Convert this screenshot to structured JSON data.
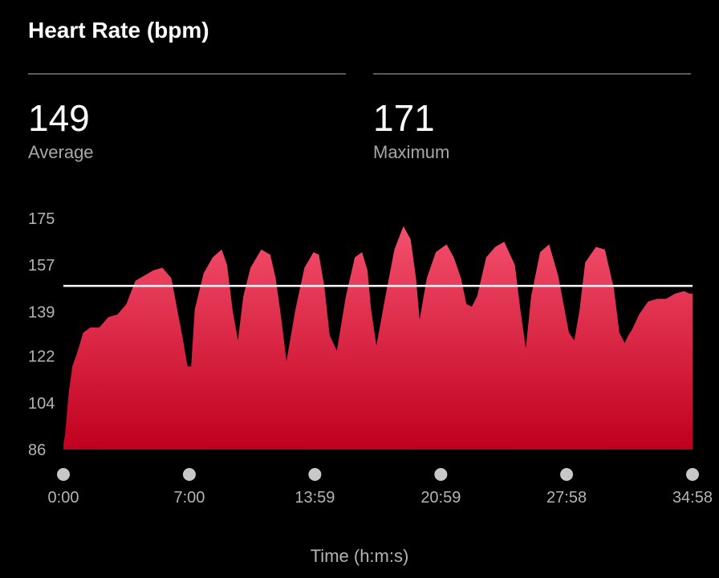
{
  "header": {
    "title": "Heart Rate (bpm)"
  },
  "stats": [
    {
      "value": "149",
      "label": "Average"
    },
    {
      "value": "171",
      "label": "Maximum"
    }
  ],
  "colors": {
    "fill_top": "#f4506e",
    "fill_bottom": "#c0001e",
    "avg_line": "#ffffff",
    "marker": "#c8c8c8"
  },
  "chart_data": {
    "type": "area",
    "title": "Heart Rate (bpm)",
    "xlabel": "Time (h:m:s)",
    "ylabel": "",
    "x_unit": "minutes",
    "ylim": [
      86,
      175
    ],
    "xlim": [
      0,
      34.97
    ],
    "yticks": [
      175,
      157,
      139,
      122,
      104,
      86
    ],
    "xticks": [
      {
        "x": 0,
        "label": "0:00"
      },
      {
        "x": 7.0,
        "label": "7:00"
      },
      {
        "x": 13.98,
        "label": "13:59"
      },
      {
        "x": 20.98,
        "label": "20:59"
      },
      {
        "x": 27.97,
        "label": "27:58"
      },
      {
        "x": 34.97,
        "label": "34:58"
      }
    ],
    "average": 149,
    "maximum": 171,
    "grid": false,
    "series": [
      {
        "x": [
          0,
          0.1,
          0.3,
          0.5,
          0.8,
          1.1,
          1.5,
          2.0,
          2.5,
          3.0,
          3.5,
          4.0,
          4.5,
          5.0,
          5.5,
          6.0,
          6.6,
          6.9,
          7.1,
          7.3,
          7.8,
          8.3,
          8.8,
          9.1,
          9.4,
          9.7,
          10.0,
          10.4,
          11.0,
          11.5,
          11.8,
          12.1,
          12.4,
          12.9,
          13.4,
          13.9,
          14.2,
          14.5,
          14.8,
          15.2,
          15.7,
          16.2,
          16.6,
          16.9,
          17.1,
          17.4,
          17.9,
          18.4,
          18.9,
          19.3,
          19.6,
          19.8,
          20.2,
          20.7,
          21.3,
          21.7,
          22.1,
          22.4,
          22.7,
          23.0,
          23.5,
          24.0,
          24.5,
          25.1,
          25.4,
          25.7,
          26.0,
          26.5,
          27.0,
          27.5,
          28.1,
          28.4,
          28.7,
          29.0,
          29.6,
          30.1,
          30.6,
          30.9,
          31.2,
          31.4,
          31.6,
          32.0,
          32.5,
          33.0,
          33.5,
          34.0,
          34.5,
          34.8,
          34.97
        ],
        "y": [
          88,
          92,
          108,
          118,
          124,
          131,
          133,
          133,
          137,
          138,
          142,
          151,
          153,
          155,
          156,
          152,
          130,
          118,
          118,
          140,
          154,
          160,
          163,
          157,
          140,
          128,
          145,
          156,
          163,
          161,
          152,
          137,
          120,
          140,
          156,
          162,
          161,
          149,
          130,
          124,
          145,
          160,
          162,
          155,
          140,
          126,
          145,
          163,
          172,
          167,
          152,
          136,
          152,
          162,
          165,
          160,
          152,
          142,
          141,
          145,
          160,
          164,
          166,
          157,
          140,
          125,
          145,
          162,
          165,
          153,
          131,
          128,
          140,
          158,
          164,
          163,
          148,
          131,
          127,
          130,
          132,
          138,
          143,
          144,
          144,
          146,
          147,
          146,
          146
        ]
      }
    ]
  },
  "x_axis": {
    "label": "Time (h:m:s)"
  }
}
